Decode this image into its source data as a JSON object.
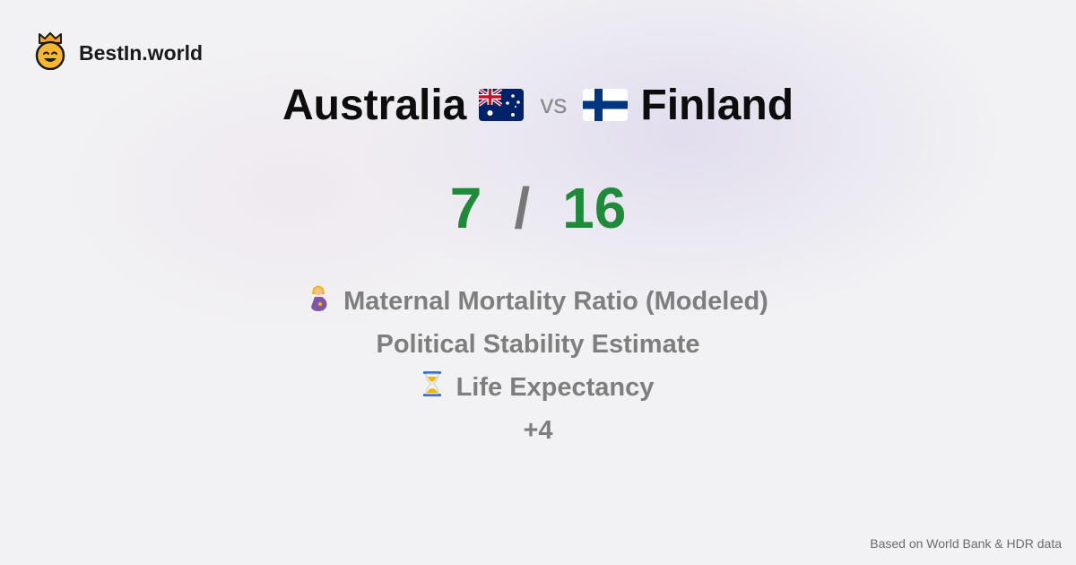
{
  "brand": {
    "name": "BestIn.world",
    "icon": "crowned-smiley-icon",
    "accent": "#f5a623"
  },
  "comparison": {
    "left": {
      "country": "Australia",
      "flag": "australia-flag-icon"
    },
    "vs_label": "vs",
    "right": {
      "country": "Finland",
      "flag": "finland-flag-icon"
    }
  },
  "score": {
    "left": "7",
    "separator": "/",
    "right": "16",
    "color": "#1f8a3a"
  },
  "metrics": [
    {
      "label": "Maternal Mortality Ratio (Modeled)",
      "icon": "pregnant-woman-icon"
    },
    {
      "label": "Political Stability Estimate"
    },
    {
      "label": "Life Expectancy",
      "icon": "hourglass-icon"
    },
    {
      "label": "+4"
    }
  ],
  "footer": {
    "source": "Based on World Bank & HDR data"
  }
}
